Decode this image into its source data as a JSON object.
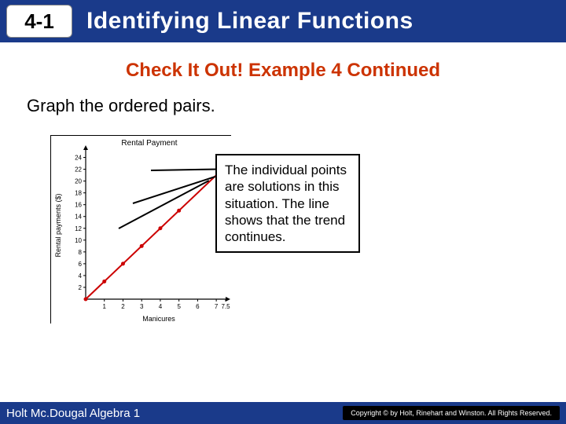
{
  "header": {
    "section_number": "4-1",
    "title": "Identifying Linear Functions",
    "bg_color": "#1a3a8a"
  },
  "subtitle": "Check It Out! Example 4 Continued",
  "instruction": "Graph the ordered pairs.",
  "chart": {
    "type": "scatter-line",
    "title": "Rental Payment",
    "xlabel": "Manicures",
    "ylabel": "Rental payments ($)",
    "xlim": [
      0,
      7.5
    ],
    "ylim": [
      0,
      25
    ],
    "xtick_labels": [
      "1",
      "2",
      "3",
      "4",
      "5",
      "6",
      "7",
      "7.5"
    ],
    "ytick_labels": [
      "2",
      "4",
      "6",
      "8",
      "10",
      "12",
      "14",
      "16",
      "18",
      "20",
      "22",
      "24"
    ],
    "ytick_step": 2,
    "points": [
      {
        "x": 0,
        "y": 0
      },
      {
        "x": 1,
        "y": 3
      },
      {
        "x": 2,
        "y": 6
      },
      {
        "x": 3,
        "y": 9
      },
      {
        "x": 4,
        "y": 12
      },
      {
        "x": 5,
        "y": 15
      }
    ],
    "line_extent": {
      "x1": 0,
      "y1": 0,
      "x2": 7.5,
      "y2": 22.5
    },
    "point_color": "#cc0000",
    "line_color": "#cc0000",
    "line_width": 2,
    "point_radius": 2.5,
    "axis_color": "#000000",
    "tick_font_size": 8,
    "title_font_size": 10,
    "label_font_size": 9,
    "background_color": "#ffffff"
  },
  "callout": {
    "text": "The individual points are solutions in this situation. The line shows that the trend continues."
  },
  "footer": {
    "textbook": "Holt Mc.Dougal Algebra 1",
    "copyright": "Copyright © by Holt, Rinehart and Winston. All Rights Reserved."
  }
}
